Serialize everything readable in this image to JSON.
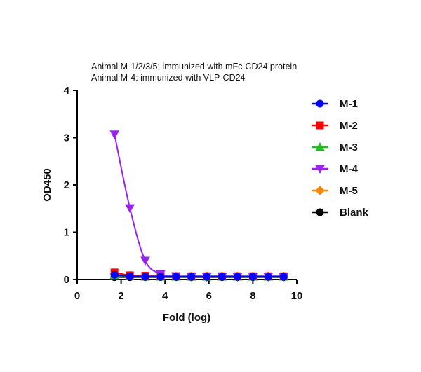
{
  "chart_data": {
    "type": "line",
    "title_lines": [
      "Animal M-1/2/3/5: immunized with mFc-CD24 protein",
      "Animal M-4: immunized with VLP-CD24"
    ],
    "xlabel": "Fold (log)",
    "ylabel": "OD450",
    "xlim": [
      0,
      10
    ],
    "ylim": [
      0,
      4
    ],
    "xticks": [
      "0",
      "2",
      "4",
      "6",
      "8",
      "10"
    ],
    "yticks": [
      "0",
      "1",
      "2",
      "3",
      "4"
    ],
    "grid": false,
    "legend_position": "right",
    "x": [
      1.7,
      2.4,
      3.1,
      3.8,
      4.5,
      5.2,
      5.9,
      6.6,
      7.3,
      8.0,
      8.7,
      9.4
    ],
    "series": [
      {
        "name": "M-1",
        "color": "#0000ff",
        "marker": "circle",
        "values": [
          0.1,
          0.07,
          0.06,
          0.06,
          0.06,
          0.06,
          0.06,
          0.06,
          0.06,
          0.06,
          0.06,
          0.06
        ]
      },
      {
        "name": "M-2",
        "color": "#ff0000",
        "marker": "square",
        "values": [
          0.15,
          0.09,
          0.08,
          0.08,
          0.07,
          0.07,
          0.07,
          0.07,
          0.07,
          0.07,
          0.07,
          0.07
        ]
      },
      {
        "name": "M-3",
        "color": "#22bb22",
        "marker": "triangle-up",
        "values": [
          0.09,
          0.07,
          0.06,
          0.06,
          0.06,
          0.06,
          0.06,
          0.06,
          0.06,
          0.06,
          0.06,
          0.06
        ]
      },
      {
        "name": "M-4",
        "color": "#9922ee",
        "marker": "triangle-down",
        "values": [
          3.07,
          1.51,
          0.4,
          0.12,
          0.07,
          0.06,
          0.06,
          0.06,
          0.06,
          0.06,
          0.06,
          0.06
        ]
      },
      {
        "name": "M-5",
        "color": "#ff8800",
        "marker": "diamond",
        "values": [
          0.12,
          0.08,
          0.07,
          0.07,
          0.07,
          0.07,
          0.07,
          0.07,
          0.07,
          0.07,
          0.07,
          0.07
        ]
      },
      {
        "name": "Blank",
        "color": "#000000",
        "marker": "circle",
        "values": [
          0.05,
          0.05,
          0.05,
          0.05,
          0.05,
          0.05,
          0.05,
          0.05,
          0.05,
          0.05,
          0.05,
          0.05
        ]
      }
    ],
    "draw_order": [
      5,
      2,
      4,
      1,
      3,
      0
    ]
  }
}
